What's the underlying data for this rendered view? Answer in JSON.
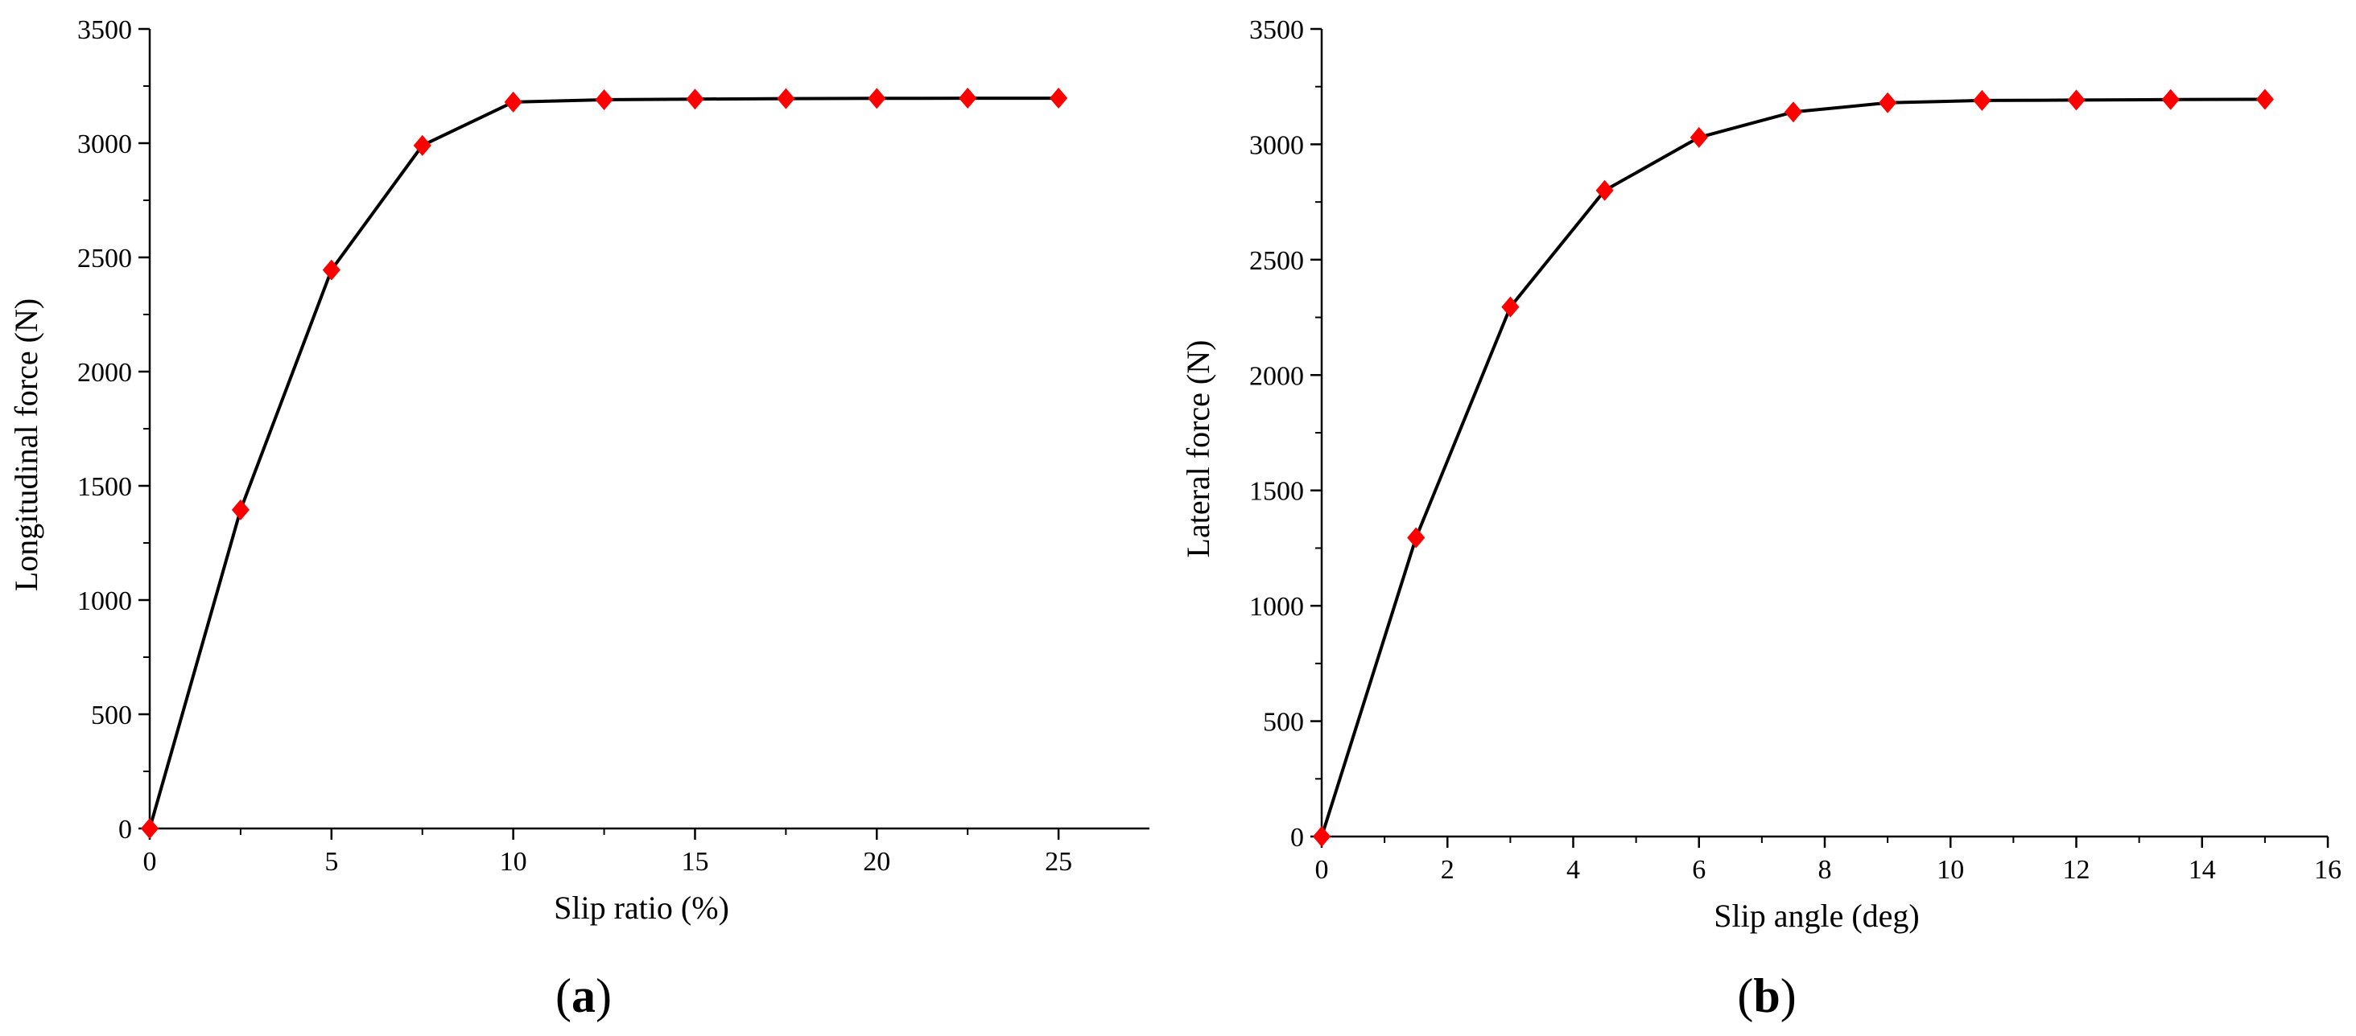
{
  "chart_data": [
    {
      "type": "line",
      "caption_letter": "a",
      "xlabel": "Slip ratio (%)",
      "ylabel": "Longitudinal force (N)",
      "xlim": [
        0,
        27.5
      ],
      "ylim": [
        0,
        3500
      ],
      "xticks": [
        0,
        5,
        10,
        15,
        20,
        25
      ],
      "xminor_ticks": [
        2.5,
        7.5,
        12.5,
        17.5,
        22.5
      ],
      "yticks": [
        0,
        500,
        1000,
        1500,
        2000,
        2500,
        3000,
        3500
      ],
      "grid": false,
      "legend": "none",
      "series": [
        {
          "x": [
            0,
            2.5,
            5,
            7.5,
            10,
            12.5,
            15,
            17.5,
            20,
            22.5,
            25
          ],
          "y": [
            0,
            1395,
            2445,
            2990,
            3180,
            3190,
            3193,
            3195,
            3196,
            3197,
            3197
          ],
          "line_color": "#000000",
          "marker": "diamond",
          "marker_color": "#ff0000"
        }
      ]
    },
    {
      "type": "line",
      "caption_letter": "b",
      "xlabel": "Slip angle (deg)",
      "ylabel": "Lateral force (N)",
      "xlim": [
        0,
        16
      ],
      "ylim": [
        0,
        3500
      ],
      "xticks": [
        0,
        2,
        4,
        6,
        8,
        10,
        12,
        14,
        16
      ],
      "xminor_ticks": [
        1,
        3,
        5,
        7,
        9,
        11,
        13,
        15
      ],
      "yticks": [
        0,
        500,
        1000,
        1500,
        2000,
        2500,
        3000,
        3500
      ],
      "grid": false,
      "legend": "none",
      "series": [
        {
          "x": [
            0,
            1.5,
            3,
            4.5,
            6,
            7.5,
            9,
            10.5,
            12,
            13.5,
            15
          ],
          "y": [
            0,
            1295,
            2295,
            2800,
            3030,
            3140,
            3180,
            3190,
            3192,
            3194,
            3195
          ],
          "line_color": "#000000",
          "marker": "diamond",
          "marker_color": "#ff0000"
        }
      ]
    }
  ]
}
